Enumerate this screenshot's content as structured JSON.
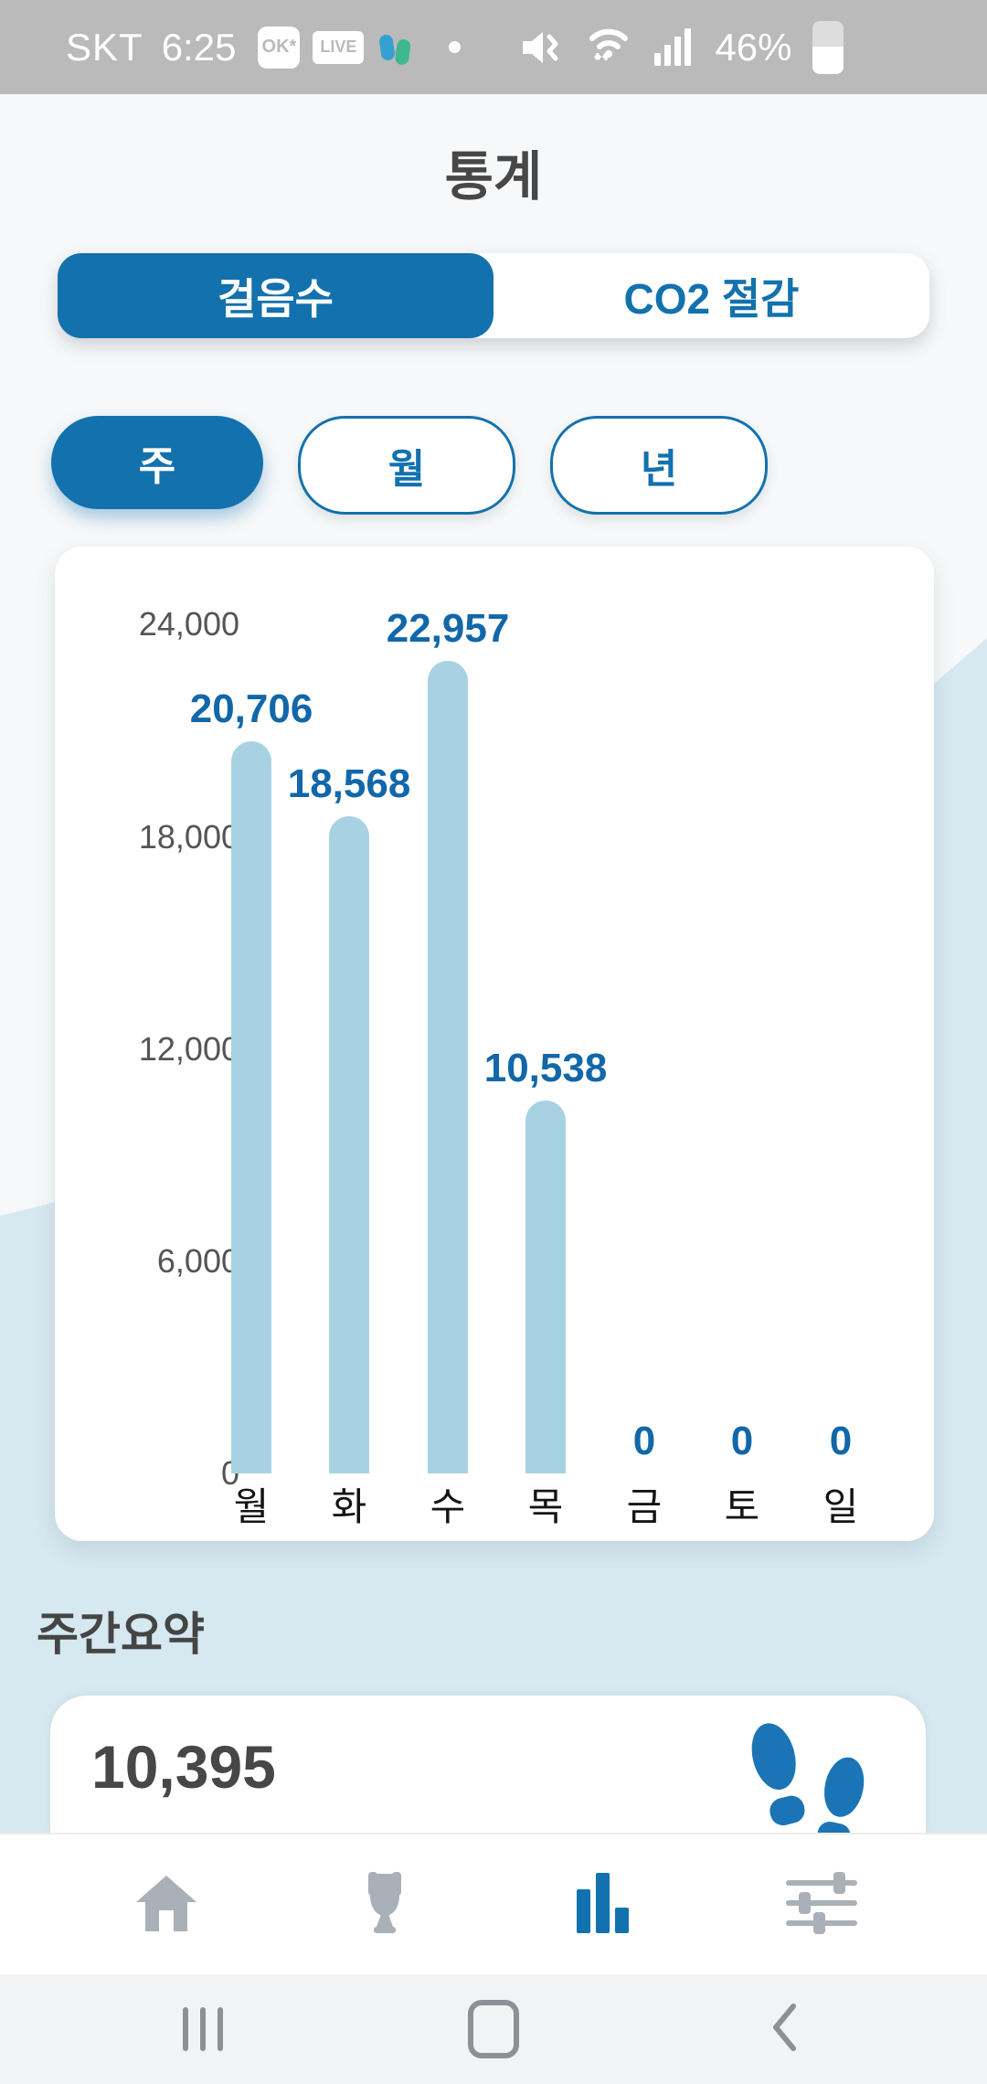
{
  "status_bar": {
    "carrier": "SKT",
    "time": "6:25",
    "ok_badge": "OK*",
    "live_badge": "LIVE",
    "battery_percent": "46%"
  },
  "header": {
    "title": "통계"
  },
  "tabs": {
    "steps_label": "걸음수",
    "co2_label": "CO2 절감",
    "active": "걸음수"
  },
  "periods": {
    "week_label": "주",
    "month_label": "월",
    "year_label": "년",
    "active": "주"
  },
  "chart_data": {
    "type": "bar",
    "title": "",
    "categories": [
      "월",
      "화",
      "수",
      "목",
      "금",
      "토",
      "일"
    ],
    "values": [
      20706,
      18568,
      22957,
      10538,
      0,
      0,
      0
    ],
    "value_labels": [
      "20,706",
      "18,568",
      "22,957",
      "10,538",
      "0",
      "0",
      "0"
    ],
    "y_ticks": [
      "24,000",
      "18,000",
      "12,000",
      "6,000",
      "0"
    ],
    "ylim": [
      0,
      24000
    ],
    "grid": false,
    "legend": false,
    "bar_color": "#a8d2e3",
    "value_label_color": "#1167a9"
  },
  "summary": {
    "heading": "주간요약",
    "steps_value": "10,395"
  },
  "bottom_nav": {
    "items": [
      {
        "name": "home",
        "icon": "home-icon",
        "active": false
      },
      {
        "name": "ranking",
        "icon": "trophy-icon",
        "active": false
      },
      {
        "name": "statistics",
        "icon": "bar-chart-icon",
        "active": true
      },
      {
        "name": "settings",
        "icon": "sliders-icon",
        "active": false
      }
    ]
  },
  "system_nav": {
    "items": [
      {
        "name": "recents",
        "icon": "recents-icon"
      },
      {
        "name": "home",
        "icon": "home-square-icon"
      },
      {
        "name": "back",
        "icon": "back-chevron-icon"
      }
    ]
  },
  "colors": {
    "primary_blue": "#1371ae",
    "bar_fill": "#a8d2e3",
    "value_label_blue": "#1167a9",
    "wave_blue": "#d6e8f0",
    "status_bar_gray": "#bababa",
    "dark_text": "#474747",
    "nav_icon_gray": "#a9b0b8"
  }
}
